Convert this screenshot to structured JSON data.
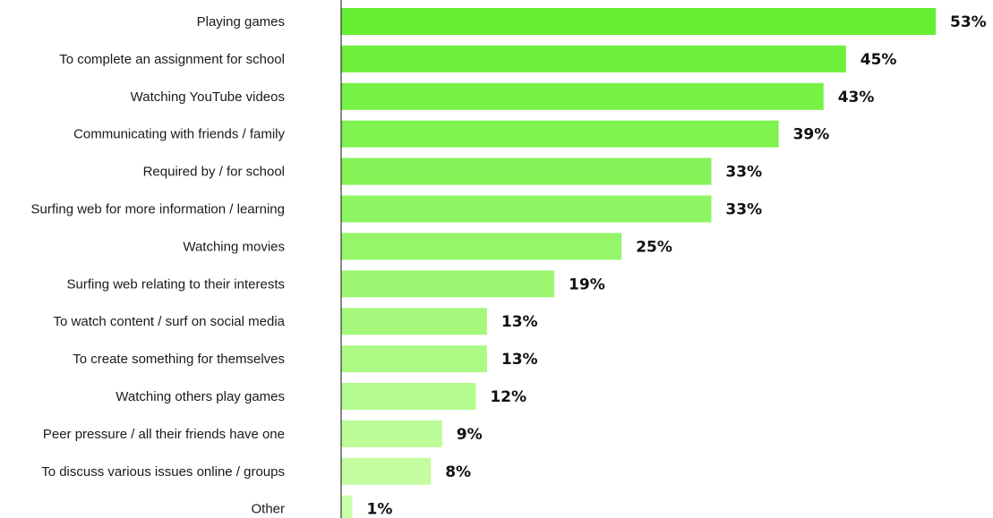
{
  "chart_data": {
    "type": "bar",
    "orientation": "horizontal",
    "categories": [
      "Playing games",
      "To complete an assignment for school",
      "Watching YouTube videos",
      "Communicating with friends / family",
      "Required by / for school",
      "Surfing web for more information / learning",
      "Watching movies",
      "Surfing web relating to their interests",
      "To watch content / surf on social media",
      "To create something for themselves",
      "Watching others play games",
      "Peer pressure / all their friends have one",
      "To discuss various issues online / groups",
      "Other"
    ],
    "values": [
      53,
      45,
      43,
      39,
      33,
      33,
      25,
      19,
      13,
      13,
      12,
      9,
      8,
      1
    ],
    "value_labels": [
      "53%",
      "45%",
      "43%",
      "39%",
      "33%",
      "33%",
      "25%",
      "19%",
      "13%",
      "13%",
      "12%",
      "9%",
      "8%",
      "1%"
    ],
    "unit": "%",
    "xlim": [
      0,
      53
    ],
    "grid": false,
    "legend": "none",
    "colors": {
      "bar_start": "#66ee33",
      "bar_end": "#ccffaa",
      "axis": "#111111",
      "text": "#1a1a1a"
    }
  }
}
